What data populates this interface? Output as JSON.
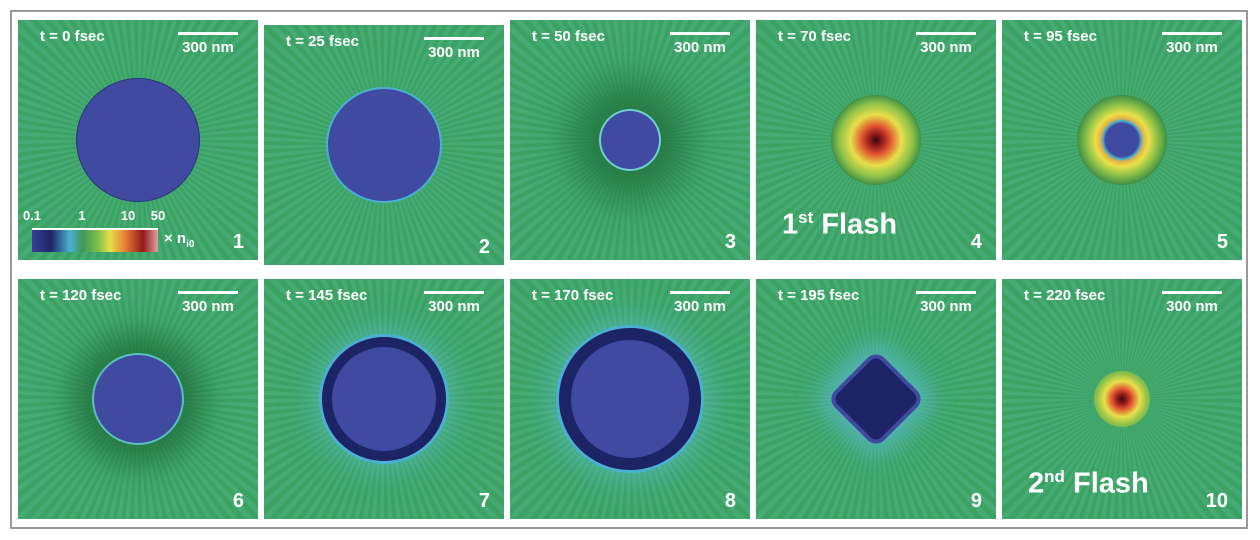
{
  "panels": [
    {
      "time": "t = 0 fsec",
      "scale": "300 nm",
      "number": "1"
    },
    {
      "time": "t = 25 fsec",
      "scale": "300 nm",
      "number": "2"
    },
    {
      "time": "t = 50 fsec",
      "scale": "300 nm",
      "number": "3"
    },
    {
      "time": "t = 70 fsec",
      "scale": "300 nm",
      "number": "4",
      "flash": "1",
      "flash_sup": "st",
      "flash_word": "Flash"
    },
    {
      "time": "t = 95 fsec",
      "scale": "300 nm",
      "number": "5"
    },
    {
      "time": "t = 120 fsec",
      "scale": "300 nm",
      "number": "6"
    },
    {
      "time": "t = 145 fsec",
      "scale": "300 nm",
      "number": "7"
    },
    {
      "time": "t = 170 fsec",
      "scale": "300 nm",
      "number": "8"
    },
    {
      "time": "t = 195 fsec",
      "scale": "300 nm",
      "number": "9"
    },
    {
      "time": "t = 220 fsec",
      "scale": "300 nm",
      "number": "10",
      "flash": "2",
      "flash_sup": "nd",
      "flash_word": "Flash"
    }
  ],
  "colorbar": {
    "ticks": [
      "0.1",
      "1",
      "10",
      "50"
    ],
    "unit": "× n",
    "unit_sub": "i0"
  },
  "colors": {
    "background": "#3ea668",
    "core": "#3f4aa0",
    "hot": "#8e1b1b"
  }
}
